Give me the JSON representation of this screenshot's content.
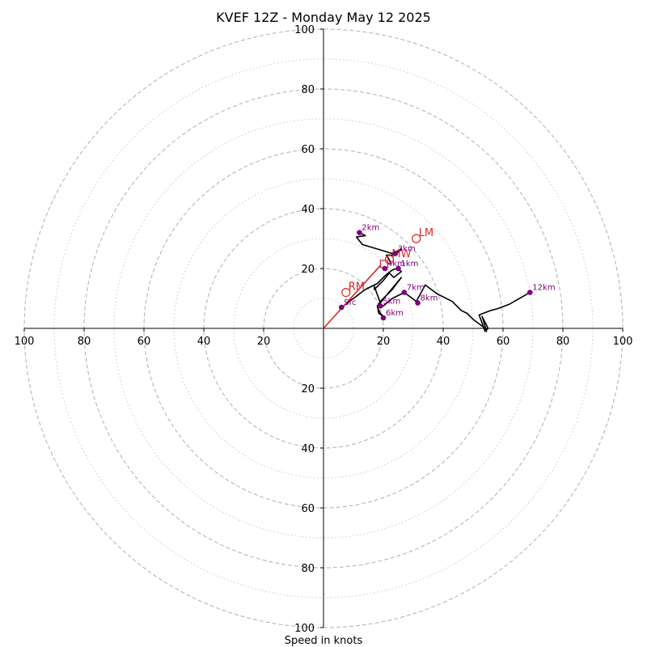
{
  "chart_data": {
    "type": "hodograph",
    "title": "KVEF 12Z - Monday May 12 2025",
    "xlabel": "Speed in knots",
    "xlim": [
      -100,
      100
    ],
    "ylim": [
      -100,
      100
    ],
    "grid": true,
    "ring_major": [
      20,
      40,
      60,
      80,
      100
    ],
    "ring_minor": [
      10,
      30,
      50,
      70,
      90
    ],
    "ticks": {
      "x": [
        {
          "value": -100,
          "label": "100"
        },
        {
          "value": -80,
          "label": "80"
        },
        {
          "value": -60,
          "label": "60"
        },
        {
          "value": -40,
          "label": "40"
        },
        {
          "value": -20,
          "label": "20"
        },
        {
          "value": 20,
          "label": "20"
        },
        {
          "value": 40,
          "label": "40"
        },
        {
          "value": 60,
          "label": "60"
        },
        {
          "value": 80,
          "label": "80"
        },
        {
          "value": 100,
          "label": "100"
        }
      ],
      "y": [
        {
          "value": 100,
          "label": "100"
        },
        {
          "value": 80,
          "label": "80"
        },
        {
          "value": 60,
          "label": "60"
        },
        {
          "value": 40,
          "label": "40"
        },
        {
          "value": 20,
          "label": "20"
        },
        {
          "value": -20,
          "label": "20"
        },
        {
          "value": -40,
          "label": "40"
        },
        {
          "value": -60,
          "label": "60"
        },
        {
          "value": -80,
          "label": "80"
        },
        {
          "value": -100,
          "label": "100"
        }
      ]
    },
    "wind_trace": [
      [
        6,
        7
      ],
      [
        10,
        10
      ],
      [
        14,
        13
      ],
      [
        18,
        15
      ],
      [
        21,
        18
      ],
      [
        23,
        19.5
      ],
      [
        24.5,
        20
      ],
      [
        26,
        19
      ],
      [
        23.5,
        17
      ],
      [
        22,
        18.5
      ],
      [
        20,
        16
      ],
      [
        17,
        13
      ],
      [
        17,
        14
      ],
      [
        19,
        8.5
      ],
      [
        21,
        11
      ],
      [
        26,
        17
      ],
      [
        23,
        13
      ],
      [
        19,
        9
      ],
      [
        18,
        7.5
      ],
      [
        18.5,
        5
      ],
      [
        20,
        4
      ],
      [
        19,
        5
      ],
      [
        18,
        7
      ],
      [
        20,
        7.5
      ],
      [
        23,
        10
      ],
      [
        27,
        12
      ],
      [
        31,
        9
      ],
      [
        34,
        14.5
      ],
      [
        38,
        11.5
      ],
      [
        43,
        9
      ],
      [
        44,
        8
      ],
      [
        46,
        6
      ],
      [
        48,
        5
      ],
      [
        50,
        3
      ],
      [
        52,
        1.5
      ],
      [
        54,
        0
      ],
      [
        54.5,
        -1
      ],
      [
        53,
        4
      ],
      [
        55,
        0
      ],
      [
        54,
        -1
      ],
      [
        52,
        4.5
      ],
      [
        56,
        6
      ],
      [
        58,
        6.5
      ],
      [
        62,
        8
      ],
      [
        69,
        12
      ]
    ],
    "upper_trace": [
      [
        12,
        32
      ],
      [
        14,
        31
      ],
      [
        11,
        30.5
      ],
      [
        13,
        28
      ],
      [
        18,
        26.5
      ],
      [
        23,
        25
      ],
      [
        26,
        26.5
      ],
      [
        24,
        24.5
      ],
      [
        21,
        24.5
      ],
      [
        22.5,
        22
      ]
    ],
    "height_markers": [
      {
        "label": "Sfc",
        "u": 6,
        "v": 7
      },
      {
        "label": "1km",
        "u": 25,
        "v": 20
      },
      {
        "label": "2km",
        "u": 12,
        "v": 32
      },
      {
        "label": "3km",
        "u": 24,
        "v": 25
      },
      {
        "label": "4km",
        "u": 20.5,
        "v": 20
      },
      {
        "label": "5km",
        "u": 19,
        "v": 7.5
      },
      {
        "label": "6km",
        "u": 20,
        "v": 3.5
      },
      {
        "label": "7km",
        "u": 27,
        "v": 12
      },
      {
        "label": "8km",
        "u": 31.5,
        "v": 8.5
      },
      {
        "label": "12km",
        "u": 69,
        "v": 12
      }
    ],
    "storm_motion": {
      "rm": {
        "label": "RM",
        "u": 7.5,
        "v": 12
      },
      "lm": {
        "label": "LM",
        "u": 31,
        "v": 30
      },
      "mw": {
        "label": "MW",
        "u": 22,
        "v": 23
      },
      "vector_end": {
        "u": 19,
        "v": 21
      }
    },
    "colors": {
      "trace": "#000000",
      "height_marker": "#800080",
      "storm_motion": "#d62728",
      "grid": "#b0b0b0",
      "axis": "#000000"
    }
  }
}
